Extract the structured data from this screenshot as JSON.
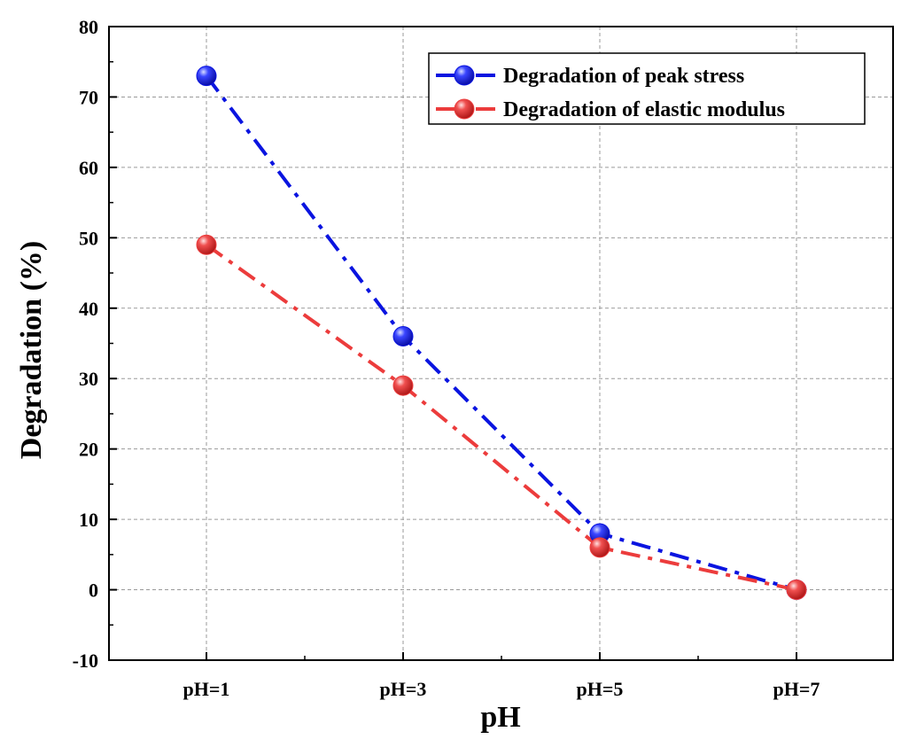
{
  "chart_data": {
    "type": "line",
    "title": "",
    "xlabel": "pH",
    "ylabel": "Degradation (%)",
    "categories": [
      "pH=1",
      "pH=3",
      "pH=5",
      "pH=7"
    ],
    "ylim": [
      -10,
      80
    ],
    "yticks": [
      -10,
      0,
      10,
      20,
      30,
      40,
      50,
      60,
      70,
      80
    ],
    "grid": true,
    "legend_position": "top-right",
    "series": [
      {
        "name": "Degradation of peak stress",
        "color": "#0a14e0",
        "values": [
          73,
          36,
          8,
          0
        ]
      },
      {
        "name": "Degradation of elastic modulus",
        "color": "#ec3c3c",
        "values": [
          49,
          29,
          6,
          0
        ]
      }
    ]
  }
}
